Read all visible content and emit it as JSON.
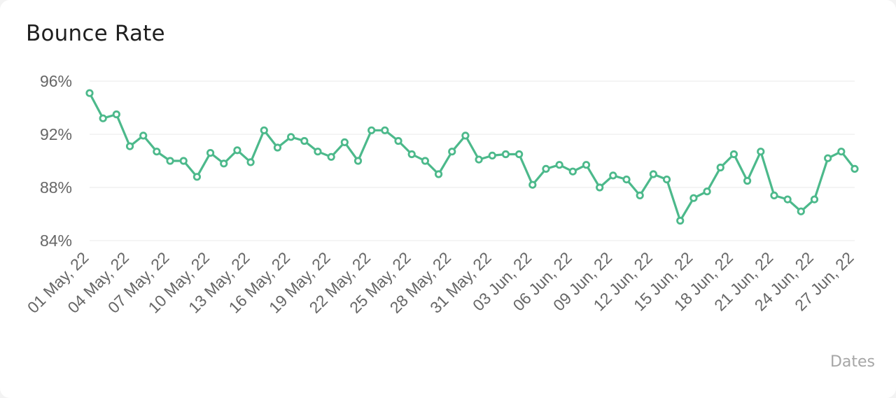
{
  "card": {
    "title": "Bounce Rate"
  },
  "colors": {
    "line": "#4cb98b",
    "marker_fill": "#ffffff",
    "grid": "#eeeeee"
  },
  "chart_data": {
    "type": "line",
    "title": "Bounce Rate",
    "xlabel": "Dates",
    "ylabel": "",
    "ylim": [
      84,
      96
    ],
    "y_ticks": [
      "96%",
      "92%",
      "88%",
      "84%"
    ],
    "y_tick_values": [
      96,
      92,
      88,
      84
    ],
    "grid": true,
    "legend": "none",
    "x_tick_labels": [
      "01 May, 22",
      "04 May, 22",
      "07 May, 22",
      "10 May, 22",
      "13 May, 22",
      "16 May, 22",
      "19 May, 22",
      "22 May, 22",
      "25 May, 22",
      "28 May, 22",
      "31 May, 22",
      "03 Jun, 22",
      "06 Jun, 22",
      "09 Jun, 22",
      "12 Jun, 22",
      "15 Jun, 22",
      "18 Jun, 22",
      "21 Jun, 22",
      "24 Jun, 22",
      "27 Jun, 22"
    ],
    "x": [
      "01 May, 22",
      "02 May, 22",
      "03 May, 22",
      "04 May, 22",
      "05 May, 22",
      "06 May, 22",
      "07 May, 22",
      "08 May, 22",
      "09 May, 22",
      "10 May, 22",
      "11 May, 22",
      "12 May, 22",
      "13 May, 22",
      "14 May, 22",
      "15 May, 22",
      "16 May, 22",
      "17 May, 22",
      "18 May, 22",
      "19 May, 22",
      "20 May, 22",
      "21 May, 22",
      "22 May, 22",
      "23 May, 22",
      "24 May, 22",
      "25 May, 22",
      "26 May, 22",
      "27 May, 22",
      "28 May, 22",
      "29 May, 22",
      "30 May, 22",
      "31 May, 22",
      "01 Jun, 22",
      "02 Jun, 22",
      "03 Jun, 22",
      "04 Jun, 22",
      "05 Jun, 22",
      "06 Jun, 22",
      "07 Jun, 22",
      "08 Jun, 22",
      "09 Jun, 22",
      "10 Jun, 22",
      "11 Jun, 22",
      "12 Jun, 22",
      "13 Jun, 22",
      "14 Jun, 22",
      "15 Jun, 22",
      "16 Jun, 22",
      "17 Jun, 22",
      "18 Jun, 22",
      "19 Jun, 22",
      "20 Jun, 22",
      "21 Jun, 22",
      "22 Jun, 22",
      "23 Jun, 22",
      "24 Jun, 22",
      "25 Jun, 22",
      "26 Jun, 22",
      "27 Jun, 22"
    ],
    "values": [
      95.1,
      93.2,
      93.5,
      91.1,
      91.9,
      90.7,
      90.0,
      90.0,
      88.8,
      90.6,
      89.8,
      90.8,
      89.9,
      92.3,
      91.0,
      91.8,
      91.5,
      90.7,
      90.3,
      91.4,
      90.0,
      92.3,
      92.3,
      91.5,
      90.5,
      90.0,
      89.0,
      90.7,
      91.9,
      90.1,
      90.4,
      90.5,
      90.5,
      88.2,
      89.4,
      89.7,
      89.2,
      89.7,
      88.0,
      88.9,
      88.6,
      87.4,
      89.0,
      88.6,
      85.5,
      87.2,
      87.7,
      89.5,
      90.5,
      88.5,
      90.7,
      87.4,
      87.1,
      86.2,
      87.1,
      90.2,
      90.7,
      89.4
    ]
  }
}
